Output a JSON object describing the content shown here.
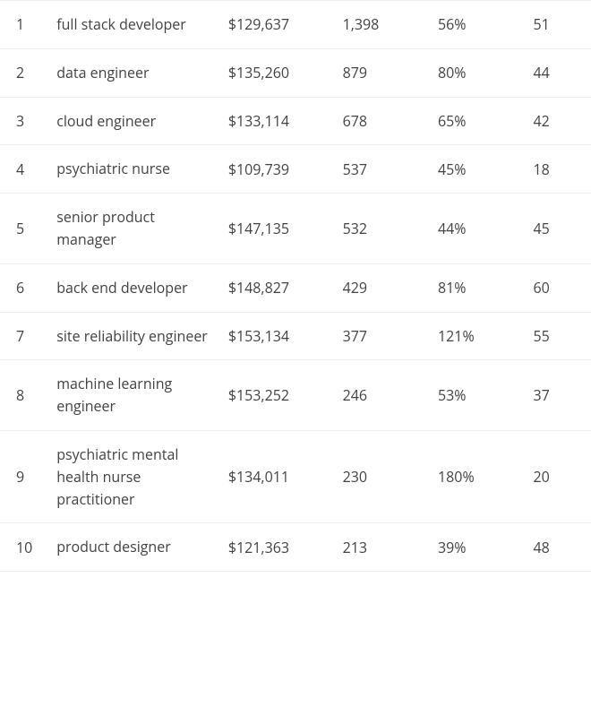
{
  "table": {
    "type": "table",
    "background_color": "#ffffff",
    "border_color": "#ececec",
    "text_color": "#424242",
    "font_size": 16,
    "columns": [
      "rank",
      "title",
      "salary",
      "openings",
      "growth",
      "score"
    ],
    "rows": [
      {
        "rank": "1",
        "title": "full stack developer",
        "salary": "$129,637",
        "openings": "1,398",
        "growth": "56%",
        "score": "51"
      },
      {
        "rank": "2",
        "title": "data engineer",
        "salary": "$135,260",
        "openings": "879",
        "growth": "80%",
        "score": "44"
      },
      {
        "rank": "3",
        "title": "cloud engineer",
        "salary": "$133,114",
        "openings": "678",
        "growth": "65%",
        "score": "42"
      },
      {
        "rank": "4",
        "title": "psychiatric nurse",
        "salary": "$109,739",
        "openings": "537",
        "growth": "45%",
        "score": "18"
      },
      {
        "rank": "5",
        "title": "senior product manager",
        "salary": "$147,135",
        "openings": "532",
        "growth": "44%",
        "score": "45"
      },
      {
        "rank": "6",
        "title": "back end developer",
        "salary": "$148,827",
        "openings": "429",
        "growth": "81%",
        "score": "60"
      },
      {
        "rank": "7",
        "title": "site reliability engineer",
        "salary": "$153,134",
        "openings": "377",
        "growth": "121%",
        "score": "55"
      },
      {
        "rank": "8",
        "title": "machine learning engineer",
        "salary": "$153,252",
        "openings": "246",
        "growth": "53%",
        "score": "37"
      },
      {
        "rank": "9",
        "title": "psychiatric mental health nurse practitioner",
        "salary": "$134,011",
        "openings": "230",
        "growth": "180%",
        "score": "20"
      },
      {
        "rank": "10",
        "title": "product designer",
        "salary": "$121,363",
        "openings": "213",
        "growth": "39%",
        "score": "48"
      }
    ]
  }
}
